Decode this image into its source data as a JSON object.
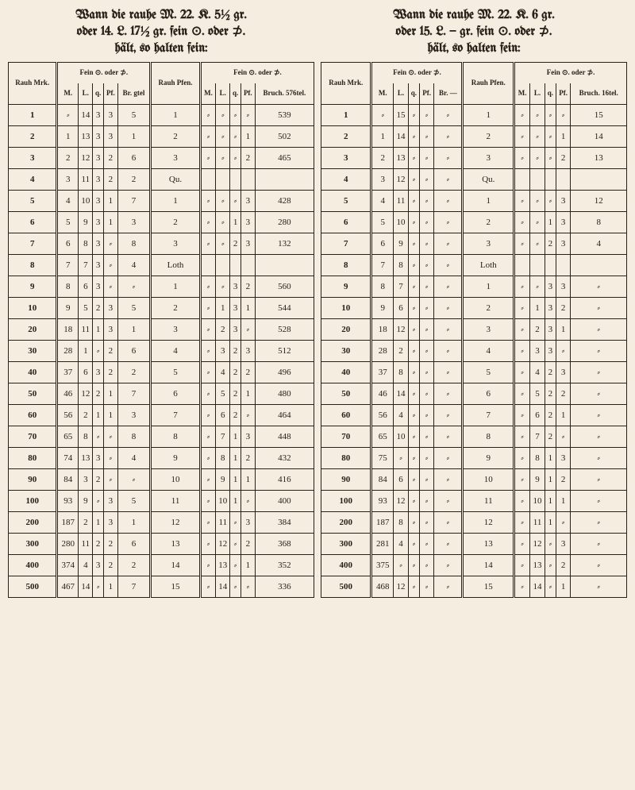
{
  "left": {
    "title_lines": [
      "Wann die rauhe M. 22. K. 5½ gr.",
      "oder 14. L. 17½ gr. fein ⊙. oder ⊅.",
      "hält, so halten fein:"
    ],
    "header": {
      "rauh_mrk": "Rauh Mrk.",
      "fein_od": "Fein ⊙. oder ⊅.",
      "rauh_pfen": "Rauh Pfen.",
      "fein_od2": "Fein ⊙. oder ⊅.",
      "cols1": [
        "M.",
        "L.",
        "q.",
        "Pf.",
        "Br. gtel"
      ],
      "cols2": [
        "M.",
        "L.",
        "q.",
        "Pf.",
        "Bruch. 576tel."
      ]
    },
    "rows": [
      {
        "r": "1",
        "a": [
          "⸗",
          "14",
          "3",
          "3",
          "5"
        ],
        "p": "1",
        "b": [
          "⸗",
          "⸗",
          "⸗",
          "⸗",
          "539"
        ]
      },
      {
        "r": "2",
        "a": [
          "1",
          "13",
          "3",
          "3",
          "1"
        ],
        "p": "2",
        "b": [
          "⸗",
          "⸗",
          "⸗",
          "1",
          "502"
        ]
      },
      {
        "r": "3",
        "a": [
          "2",
          "12",
          "3",
          "2",
          "6"
        ],
        "p": "3",
        "b": [
          "⸗",
          "⸗",
          "⸗",
          "2",
          "465"
        ]
      },
      {
        "r": "4",
        "a": [
          "3",
          "11",
          "3",
          "2",
          "2"
        ],
        "p": "Qu.",
        "b": [
          "",
          "",
          "",
          "",
          ""
        ]
      },
      {
        "r": "5",
        "a": [
          "4",
          "10",
          "3",
          "1",
          "7"
        ],
        "p": "1",
        "b": [
          "⸗",
          "⸗",
          "⸗",
          "3",
          "428"
        ]
      },
      {
        "r": "6",
        "a": [
          "5",
          "9",
          "3",
          "1",
          "3"
        ],
        "p": "2",
        "b": [
          "⸗",
          "⸗",
          "1",
          "3",
          "280"
        ]
      },
      {
        "r": "7",
        "a": [
          "6",
          "8",
          "3",
          "⸗",
          "8"
        ],
        "p": "3",
        "b": [
          "⸗",
          "⸗",
          "2",
          "3",
          "132"
        ]
      },
      {
        "r": "8",
        "a": [
          "7",
          "7",
          "3",
          "⸗",
          "4"
        ],
        "p": "Loth",
        "b": [
          "",
          "",
          "",
          "",
          ""
        ]
      },
      {
        "r": "9",
        "a": [
          "8",
          "6",
          "3",
          "⸗",
          "⸗"
        ],
        "p": "1",
        "b": [
          "⸗",
          "⸗",
          "3",
          "2",
          "560"
        ]
      },
      {
        "r": "10",
        "a": [
          "9",
          "5",
          "2",
          "3",
          "5"
        ],
        "p": "2",
        "b": [
          "⸗",
          "1",
          "3",
          "1",
          "544"
        ]
      },
      {
        "r": "20",
        "a": [
          "18",
          "11",
          "1",
          "3",
          "1"
        ],
        "p": "3",
        "b": [
          "⸗",
          "2",
          "3",
          "⸗",
          "528"
        ]
      },
      {
        "r": "30",
        "a": [
          "28",
          "1",
          "⸗",
          "2",
          "6"
        ],
        "p": "4",
        "b": [
          "⸗",
          "3",
          "2",
          "3",
          "512"
        ]
      },
      {
        "r": "40",
        "a": [
          "37",
          "6",
          "3",
          "2",
          "2"
        ],
        "p": "5",
        "b": [
          "⸗",
          "4",
          "2",
          "2",
          "496"
        ]
      },
      {
        "r": "50",
        "a": [
          "46",
          "12",
          "2",
          "1",
          "7"
        ],
        "p": "6",
        "b": [
          "⸗",
          "5",
          "2",
          "1",
          "480"
        ]
      },
      {
        "r": "60",
        "a": [
          "56",
          "2",
          "1",
          "1",
          "3"
        ],
        "p": "7",
        "b": [
          "⸗",
          "6",
          "2",
          "⸗",
          "464"
        ]
      },
      {
        "r": "70",
        "a": [
          "65",
          "8",
          "⸗",
          "⸗",
          "8"
        ],
        "p": "8",
        "b": [
          "⸗",
          "7",
          "1",
          "3",
          "448"
        ]
      },
      {
        "r": "80",
        "a": [
          "74",
          "13",
          "3",
          "⸗",
          "4"
        ],
        "p": "9",
        "b": [
          "⸗",
          "8",
          "1",
          "2",
          "432"
        ]
      },
      {
        "r": "90",
        "a": [
          "84",
          "3",
          "2",
          "⸗",
          "⸗"
        ],
        "p": "10",
        "b": [
          "⸗",
          "9",
          "1",
          "1",
          "416"
        ]
      },
      {
        "r": "100",
        "a": [
          "93",
          "9",
          "⸗",
          "3",
          "5"
        ],
        "p": "11",
        "b": [
          "⸗",
          "10",
          "1",
          "⸗",
          "400"
        ]
      },
      {
        "r": "200",
        "a": [
          "187",
          "2",
          "1",
          "3",
          "1"
        ],
        "p": "12",
        "b": [
          "⸗",
          "11",
          "⸗",
          "3",
          "384"
        ]
      },
      {
        "r": "300",
        "a": [
          "280",
          "11",
          "2",
          "2",
          "6"
        ],
        "p": "13",
        "b": [
          "⸗",
          "12",
          "⸗",
          "2",
          "368"
        ]
      },
      {
        "r": "400",
        "a": [
          "374",
          "4",
          "3",
          "2",
          "2"
        ],
        "p": "14",
        "b": [
          "⸗",
          "13",
          "⸗",
          "1",
          "352"
        ]
      },
      {
        "r": "500",
        "a": [
          "467",
          "14",
          "⸗",
          "1",
          "7"
        ],
        "p": "15",
        "b": [
          "⸗",
          "14",
          "⸗",
          "⸗",
          "336"
        ]
      }
    ]
  },
  "right": {
    "title_lines": [
      "Wann die rauhe M. 22. K. 6 gr.",
      "oder 15. L. — gr. fein ⊙. oder ⊅.",
      "hält, so halten fein:"
    ],
    "header": {
      "rauh_mrk": "Rauh Mrk.",
      "fein_od": "Fein ⊙. oder ⊅.",
      "rauh_pfen": "Rauh Pfen.",
      "fein_od2": "Fein ⊙. oder ⊅.",
      "cols1": [
        "M.",
        "L.",
        "q.",
        "Pf.",
        "Br. —"
      ],
      "cols2": [
        "M.",
        "L.",
        "q.",
        "Pf.",
        "Bruch. 16tel."
      ]
    },
    "rows": [
      {
        "r": "1",
        "a": [
          "⸗",
          "15",
          "⸗",
          "⸗",
          "⸗"
        ],
        "p": "1",
        "b": [
          "⸗",
          "⸗",
          "⸗",
          "⸗",
          "15"
        ]
      },
      {
        "r": "2",
        "a": [
          "1",
          "14",
          "⸗",
          "⸗",
          "⸗"
        ],
        "p": "2",
        "b": [
          "⸗",
          "⸗",
          "⸗",
          "1",
          "14"
        ]
      },
      {
        "r": "3",
        "a": [
          "2",
          "13",
          "⸗",
          "⸗",
          "⸗"
        ],
        "p": "3",
        "b": [
          "⸗",
          "⸗",
          "⸗",
          "2",
          "13"
        ]
      },
      {
        "r": "4",
        "a": [
          "3",
          "12",
          "⸗",
          "⸗",
          "⸗"
        ],
        "p": "Qu.",
        "b": [
          "",
          "",
          "",
          "",
          ""
        ]
      },
      {
        "r": "5",
        "a": [
          "4",
          "11",
          "⸗",
          "⸗",
          "⸗"
        ],
        "p": "1",
        "b": [
          "⸗",
          "⸗",
          "⸗",
          "3",
          "12"
        ]
      },
      {
        "r": "6",
        "a": [
          "5",
          "10",
          "⸗",
          "⸗",
          "⸗"
        ],
        "p": "2",
        "b": [
          "⸗",
          "⸗",
          "1",
          "3",
          "8"
        ]
      },
      {
        "r": "7",
        "a": [
          "6",
          "9",
          "⸗",
          "⸗",
          "⸗"
        ],
        "p": "3",
        "b": [
          "⸗",
          "⸗",
          "2",
          "3",
          "4"
        ]
      },
      {
        "r": "8",
        "a": [
          "7",
          "8",
          "⸗",
          "⸗",
          "⸗"
        ],
        "p": "Loth",
        "b": [
          "",
          "",
          "",
          "",
          ""
        ]
      },
      {
        "r": "9",
        "a": [
          "8",
          "7",
          "⸗",
          "⸗",
          "⸗"
        ],
        "p": "1",
        "b": [
          "⸗",
          "⸗",
          "3",
          "3",
          "⸗"
        ]
      },
      {
        "r": "10",
        "a": [
          "9",
          "6",
          "⸗",
          "⸗",
          "⸗"
        ],
        "p": "2",
        "b": [
          "⸗",
          "1",
          "3",
          "2",
          "⸗"
        ]
      },
      {
        "r": "20",
        "a": [
          "18",
          "12",
          "⸗",
          "⸗",
          "⸗"
        ],
        "p": "3",
        "b": [
          "⸗",
          "2",
          "3",
          "1",
          "⸗"
        ]
      },
      {
        "r": "30",
        "a": [
          "28",
          "2",
          "⸗",
          "⸗",
          "⸗"
        ],
        "p": "4",
        "b": [
          "⸗",
          "3",
          "3",
          "⸗",
          "⸗"
        ]
      },
      {
        "r": "40",
        "a": [
          "37",
          "8",
          "⸗",
          "⸗",
          "⸗"
        ],
        "p": "5",
        "b": [
          "⸗",
          "4",
          "2",
          "3",
          "⸗"
        ]
      },
      {
        "r": "50",
        "a": [
          "46",
          "14",
          "⸗",
          "⸗",
          "⸗"
        ],
        "p": "6",
        "b": [
          "⸗",
          "5",
          "2",
          "2",
          "⸗"
        ]
      },
      {
        "r": "60",
        "a": [
          "56",
          "4",
          "⸗",
          "⸗",
          "⸗"
        ],
        "p": "7",
        "b": [
          "⸗",
          "6",
          "2",
          "1",
          "⸗"
        ]
      },
      {
        "r": "70",
        "a": [
          "65",
          "10",
          "⸗",
          "⸗",
          "⸗"
        ],
        "p": "8",
        "b": [
          "⸗",
          "7",
          "2",
          "⸗",
          "⸗"
        ]
      },
      {
        "r": "80",
        "a": [
          "75",
          "⸗",
          "⸗",
          "⸗",
          "⸗"
        ],
        "p": "9",
        "b": [
          "⸗",
          "8",
          "1",
          "3",
          "⸗"
        ]
      },
      {
        "r": "90",
        "a": [
          "84",
          "6",
          "⸗",
          "⸗",
          "⸗"
        ],
        "p": "10",
        "b": [
          "⸗",
          "9",
          "1",
          "2",
          "⸗"
        ]
      },
      {
        "r": "100",
        "a": [
          "93",
          "12",
          "⸗",
          "⸗",
          "⸗"
        ],
        "p": "11",
        "b": [
          "⸗",
          "10",
          "1",
          "1",
          "⸗"
        ]
      },
      {
        "r": "200",
        "a": [
          "187",
          "8",
          "⸗",
          "⸗",
          "⸗"
        ],
        "p": "12",
        "b": [
          "⸗",
          "11",
          "1",
          "⸗",
          "⸗"
        ]
      },
      {
        "r": "300",
        "a": [
          "281",
          "4",
          "⸗",
          "⸗",
          "⸗"
        ],
        "p": "13",
        "b": [
          "⸗",
          "12",
          "⸗",
          "3",
          "⸗"
        ]
      },
      {
        "r": "400",
        "a": [
          "375",
          "⸗",
          "⸗",
          "⸗",
          "⸗"
        ],
        "p": "14",
        "b": [
          "⸗",
          "13",
          "⸗",
          "2",
          "⸗"
        ]
      },
      {
        "r": "500",
        "a": [
          "468",
          "12",
          "⸗",
          "⸗",
          "⸗"
        ],
        "p": "15",
        "b": [
          "⸗",
          "14",
          "⸗",
          "1",
          "⸗"
        ]
      }
    ]
  }
}
